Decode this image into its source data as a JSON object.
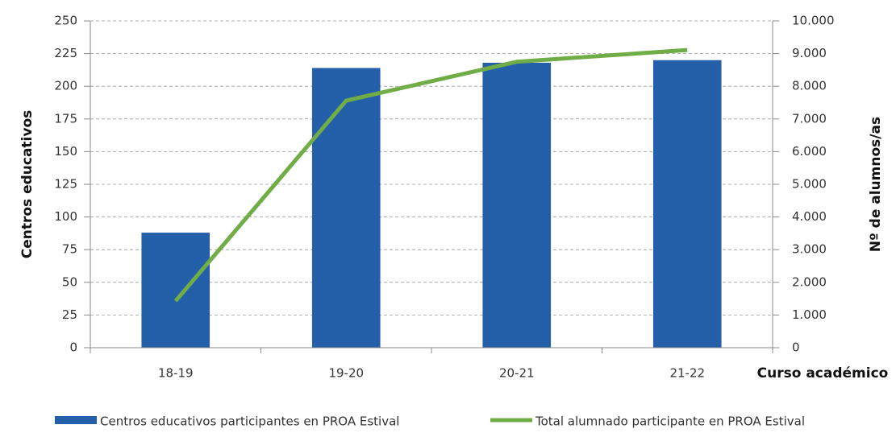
{
  "chart_data": {
    "type": "bar",
    "categories": [
      "18-19",
      "19-20",
      "20-21",
      "21-22"
    ],
    "xlabel": "Curso académico",
    "ylabel": "Centros educativos",
    "y2label": "Nº de alumnos/as",
    "series": [
      {
        "name": "Centros educativos participantes en PROA Estival",
        "type": "bar",
        "color": "#245fa9",
        "values": [
          88,
          214,
          218,
          220
        ]
      },
      {
        "name": "Total alumnado participante en PROA Estival",
        "type": "line",
        "axis": "y2",
        "color": "#70ad47",
        "values": [
          1430,
          7560,
          8750,
          9110
        ]
      }
    ],
    "ylim": [
      0,
      250
    ],
    "yticks": [
      0,
      25,
      50,
      75,
      100,
      125,
      150,
      175,
      200,
      225,
      250
    ],
    "y2lim": [
      0,
      10000
    ],
    "y2ticks": [
      0,
      {
        "value": 1000,
        "label": "1.000"
      },
      {
        "value": 2000,
        "label": "2.000"
      },
      {
        "value": 3000,
        "label": "3.000"
      },
      {
        "value": 4000,
        "label": "4.000"
      },
      {
        "value": 5000,
        "label": "5.000"
      },
      {
        "value": 6000,
        "label": "6.000"
      },
      {
        "value": 7000,
        "label": "7.000"
      },
      {
        "value": 8000,
        "label": "8.000"
      },
      {
        "value": 9000,
        "label": "9.000"
      },
      {
        "value": 10000,
        "label": "10.000"
      }
    ],
    "grid": true,
    "legend": "bottom"
  }
}
